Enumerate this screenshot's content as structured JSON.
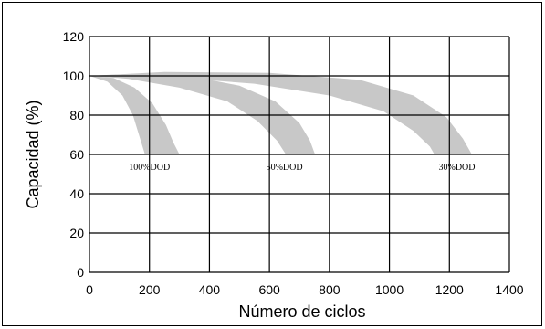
{
  "chart_data": {
    "type": "area",
    "xlabel": "Número de ciclos",
    "ylabel": "Capacidad (%)",
    "xlim": [
      0,
      1400
    ],
    "ylim": [
      0,
      120
    ],
    "x_ticks": [
      0,
      200,
      400,
      600,
      800,
      1000,
      1200,
      1400
    ],
    "y_ticks": [
      0,
      20,
      40,
      60,
      80,
      100,
      120
    ],
    "grid": true,
    "band_color": "#c8c8c8",
    "bands": [
      {
        "label": "100%DOD",
        "label_at": [
          200,
          52
        ],
        "upper": [
          [
            0,
            100
          ],
          [
            80,
            99
          ],
          [
            150,
            94
          ],
          [
            210,
            86
          ],
          [
            255,
            75
          ],
          [
            280,
            66
          ],
          [
            300,
            60
          ]
        ],
        "lower": [
          [
            0,
            100
          ],
          [
            60,
            97
          ],
          [
            110,
            90
          ],
          [
            145,
            80
          ],
          [
            165,
            70
          ],
          [
            185,
            60
          ]
        ]
      },
      {
        "label": "50%DOD",
        "label_at": [
          650,
          52
        ],
        "upper": [
          [
            0,
            100
          ],
          [
            150,
            101
          ],
          [
            350,
            99.5
          ],
          [
            500,
            95
          ],
          [
            620,
            87
          ],
          [
            700,
            76
          ],
          [
            735,
            67
          ],
          [
            752,
            60
          ]
        ],
        "lower": [
          [
            0,
            100
          ],
          [
            130,
            98.5
          ],
          [
            300,
            94
          ],
          [
            460,
            87
          ],
          [
            560,
            77
          ],
          [
            625,
            67
          ],
          [
            655,
            60
          ]
        ]
      },
      {
        "label": "30%DOD",
        "label_at": [
          1225,
          52
        ],
        "upper": [
          [
            0,
            100
          ],
          [
            250,
            102
          ],
          [
            600,
            101.5
          ],
          [
            900,
            98
          ],
          [
            1080,
            90
          ],
          [
            1190,
            79
          ],
          [
            1245,
            68
          ],
          [
            1275,
            60
          ]
        ],
        "lower": [
          [
            0,
            100
          ],
          [
            250,
            99.5
          ],
          [
            550,
            96
          ],
          [
            800,
            90
          ],
          [
            980,
            82
          ],
          [
            1080,
            72
          ],
          [
            1135,
            64
          ],
          [
            1150,
            60
          ]
        ]
      }
    ]
  }
}
